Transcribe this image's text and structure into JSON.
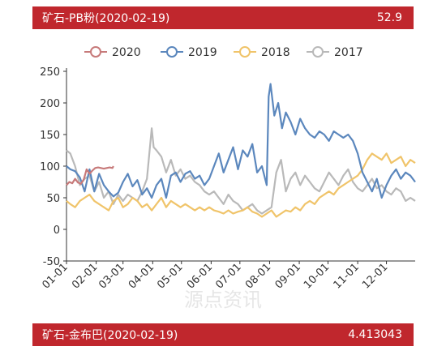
{
  "top_card": {
    "title": "矿石-PB粉(2020-02-19)",
    "value": "52.9"
  },
  "bottom_card": {
    "title": "矿石-金布巴(2020-02-19)",
    "value": "4.413043"
  },
  "watermark": {
    "text": "源点资讯"
  },
  "colors": {
    "header_bg": "#c0272d",
    "2020": "#c77a7a",
    "2019": "#5b87bd",
    "2018": "#f0c46a",
    "2017": "#b9b9b9"
  },
  "chart_data": {
    "type": "line",
    "title": "",
    "xlabel": "",
    "ylabel": "",
    "x_ticks": [
      "01-01",
      "02-01",
      "03-01",
      "04-01",
      "05-01",
      "06-01",
      "07-01",
      "08-01",
      "09-01",
      "10-01",
      "11-01",
      "12-01"
    ],
    "y_ticks": [
      "-50",
      "0",
      "50",
      "100",
      "150",
      "200",
      "250"
    ],
    "ylim": [
      -50,
      250
    ],
    "grid": false,
    "legend": "top",
    "series": [
      {
        "name": "2020",
        "color": "#c77a7a",
        "points": [
          [
            1,
            70
          ],
          [
            4,
            75
          ],
          [
            7,
            73
          ],
          [
            10,
            80
          ],
          [
            13,
            74
          ],
          [
            16,
            72
          ],
          [
            19,
            79
          ],
          [
            22,
            95
          ],
          [
            25,
            88
          ],
          [
            28,
            93
          ],
          [
            31,
            97
          ],
          [
            34,
            98
          ],
          [
            37,
            97
          ],
          [
            40,
            96
          ],
          [
            43,
            97
          ],
          [
            46,
            98
          ],
          [
            49,
            97
          ],
          [
            50,
            100
          ]
        ]
      },
      {
        "name": "2019",
        "color": "#5b87bd",
        "points": [
          [
            1,
            100
          ],
          [
            5,
            95
          ],
          [
            10,
            92
          ],
          [
            15,
            82
          ],
          [
            20,
            60
          ],
          [
            25,
            95
          ],
          [
            30,
            60
          ],
          [
            35,
            88
          ],
          [
            40,
            70
          ],
          [
            45,
            60
          ],
          [
            50,
            52
          ],
          [
            55,
            58
          ],
          [
            60,
            75
          ],
          [
            65,
            88
          ],
          [
            70,
            68
          ],
          [
            75,
            78
          ],
          [
            80,
            55
          ],
          [
            85,
            65
          ],
          [
            90,
            50
          ],
          [
            95,
            70
          ],
          [
            100,
            80
          ],
          [
            105,
            50
          ],
          [
            110,
            85
          ],
          [
            115,
            90
          ],
          [
            120,
            75
          ],
          [
            125,
            88
          ],
          [
            130,
            92
          ],
          [
            135,
            80
          ],
          [
            140,
            85
          ],
          [
            145,
            70
          ],
          [
            150,
            80
          ],
          [
            155,
            100
          ],
          [
            160,
            120
          ],
          [
            165,
            90
          ],
          [
            170,
            110
          ],
          [
            175,
            130
          ],
          [
            180,
            95
          ],
          [
            185,
            125
          ],
          [
            190,
            115
          ],
          [
            195,
            135
          ],
          [
            200,
            90
          ],
          [
            205,
            100
          ],
          [
            210,
            70
          ],
          [
            212,
            210
          ],
          [
            214,
            230
          ],
          [
            218,
            180
          ],
          [
            222,
            200
          ],
          [
            226,
            160
          ],
          [
            230,
            185
          ],
          [
            235,
            170
          ],
          [
            240,
            150
          ],
          [
            245,
            175
          ],
          [
            250,
            160
          ],
          [
            255,
            150
          ],
          [
            260,
            145
          ],
          [
            265,
            155
          ],
          [
            270,
            150
          ],
          [
            275,
            140
          ],
          [
            280,
            155
          ],
          [
            285,
            150
          ],
          [
            290,
            145
          ],
          [
            295,
            150
          ],
          [
            300,
            140
          ],
          [
            305,
            120
          ],
          [
            310,
            90
          ],
          [
            315,
            75
          ],
          [
            320,
            60
          ],
          [
            325,
            80
          ],
          [
            330,
            50
          ],
          [
            335,
            70
          ],
          [
            340,
            85
          ],
          [
            345,
            95
          ],
          [
            350,
            80
          ],
          [
            355,
            90
          ],
          [
            360,
            85
          ],
          [
            365,
            75
          ]
        ]
      },
      {
        "name": "2018",
        "color": "#f0c46a",
        "points": [
          [
            1,
            45
          ],
          [
            5,
            40
          ],
          [
            10,
            35
          ],
          [
            15,
            45
          ],
          [
            20,
            50
          ],
          [
            25,
            55
          ],
          [
            30,
            45
          ],
          [
            35,
            40
          ],
          [
            40,
            35
          ],
          [
            45,
            30
          ],
          [
            50,
            45
          ],
          [
            55,
            50
          ],
          [
            60,
            35
          ],
          [
            65,
            40
          ],
          [
            70,
            50
          ],
          [
            75,
            45
          ],
          [
            80,
            35
          ],
          [
            85,
            40
          ],
          [
            90,
            30
          ],
          [
            95,
            40
          ],
          [
            100,
            50
          ],
          [
            105,
            35
          ],
          [
            110,
            45
          ],
          [
            115,
            40
          ],
          [
            120,
            35
          ],
          [
            125,
            40
          ],
          [
            130,
            35
          ],
          [
            135,
            30
          ],
          [
            140,
            35
          ],
          [
            145,
            30
          ],
          [
            150,
            35
          ],
          [
            155,
            30
          ],
          [
            160,
            28
          ],
          [
            165,
            25
          ],
          [
            170,
            30
          ],
          [
            175,
            25
          ],
          [
            180,
            28
          ],
          [
            185,
            30
          ],
          [
            190,
            35
          ],
          [
            195,
            28
          ],
          [
            200,
            25
          ],
          [
            205,
            20
          ],
          [
            210,
            25
          ],
          [
            215,
            30
          ],
          [
            220,
            20
          ],
          [
            225,
            25
          ],
          [
            230,
            30
          ],
          [
            235,
            28
          ],
          [
            240,
            35
          ],
          [
            245,
            30
          ],
          [
            250,
            40
          ],
          [
            255,
            45
          ],
          [
            260,
            40
          ],
          [
            265,
            50
          ],
          [
            270,
            55
          ],
          [
            275,
            60
          ],
          [
            280,
            55
          ],
          [
            285,
            65
          ],
          [
            290,
            70
          ],
          [
            295,
            75
          ],
          [
            300,
            80
          ],
          [
            305,
            85
          ],
          [
            310,
            95
          ],
          [
            315,
            110
          ],
          [
            320,
            120
          ],
          [
            325,
            115
          ],
          [
            330,
            110
          ],
          [
            335,
            120
          ],
          [
            340,
            105
          ],
          [
            345,
            110
          ],
          [
            350,
            115
          ],
          [
            355,
            100
          ],
          [
            360,
            110
          ],
          [
            365,
            105
          ]
        ]
      },
      {
        "name": "2017",
        "color": "#b9b9b9",
        "points": [
          [
            1,
            125
          ],
          [
            5,
            120
          ],
          [
            10,
            100
          ],
          [
            15,
            70
          ],
          [
            20,
            80
          ],
          [
            25,
            85
          ],
          [
            30,
            60
          ],
          [
            35,
            75
          ],
          [
            40,
            50
          ],
          [
            45,
            60
          ],
          [
            50,
            40
          ],
          [
            55,
            55
          ],
          [
            60,
            45
          ],
          [
            65,
            55
          ],
          [
            70,
            50
          ],
          [
            75,
            45
          ],
          [
            80,
            60
          ],
          [
            85,
            80
          ],
          [
            90,
            160
          ],
          [
            92,
            130
          ],
          [
            95,
            125
          ],
          [
            100,
            115
          ],
          [
            105,
            90
          ],
          [
            110,
            110
          ],
          [
            115,
            85
          ],
          [
            120,
            95
          ],
          [
            125,
            80
          ],
          [
            130,
            85
          ],
          [
            135,
            75
          ],
          [
            140,
            70
          ],
          [
            145,
            60
          ],
          [
            150,
            55
          ],
          [
            155,
            60
          ],
          [
            160,
            50
          ],
          [
            165,
            40
          ],
          [
            170,
            55
          ],
          [
            175,
            45
          ],
          [
            180,
            40
          ],
          [
            185,
            30
          ],
          [
            190,
            35
          ],
          [
            195,
            40
          ],
          [
            200,
            30
          ],
          [
            205,
            25
          ],
          [
            210,
            30
          ],
          [
            215,
            35
          ],
          [
            220,
            90
          ],
          [
            225,
            110
          ],
          [
            230,
            60
          ],
          [
            235,
            80
          ],
          [
            240,
            90
          ],
          [
            245,
            70
          ],
          [
            250,
            85
          ],
          [
            255,
            75
          ],
          [
            260,
            65
          ],
          [
            265,
            60
          ],
          [
            270,
            75
          ],
          [
            275,
            90
          ],
          [
            280,
            80
          ],
          [
            285,
            70
          ],
          [
            290,
            85
          ],
          [
            295,
            95
          ],
          [
            300,
            75
          ],
          [
            305,
            65
          ],
          [
            310,
            60
          ],
          [
            315,
            70
          ],
          [
            320,
            80
          ],
          [
            325,
            65
          ],
          [
            330,
            70
          ],
          [
            335,
            60
          ],
          [
            340,
            55
          ],
          [
            345,
            65
          ],
          [
            350,
            60
          ],
          [
            355,
            45
          ],
          [
            360,
            50
          ],
          [
            365,
            45
          ]
        ]
      }
    ]
  }
}
